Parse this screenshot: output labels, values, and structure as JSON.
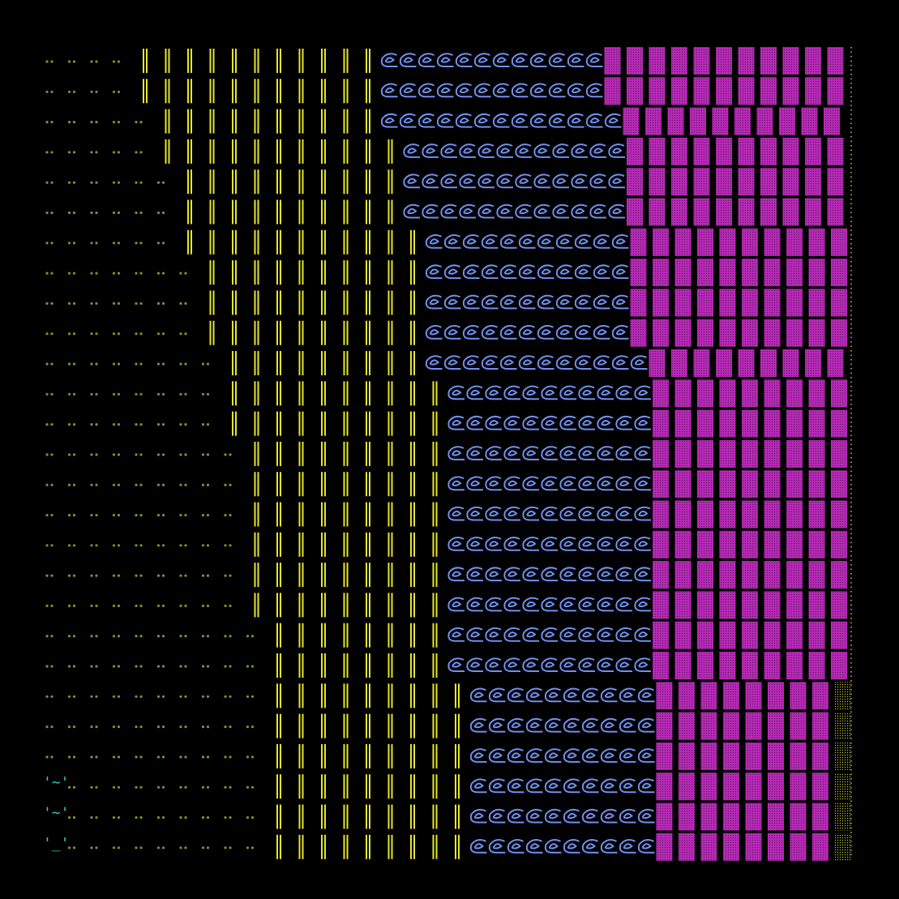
{
  "rows": [
    {
      "dots": 4,
      "bars": 11,
      "curls": 12,
      "boxes": 11
    },
    {
      "dots": 4,
      "bars": 11,
      "curls": 12,
      "boxes": 11
    },
    {
      "dots": 5,
      "bars": 10,
      "curls": 13,
      "boxes": 10
    },
    {
      "dots": 5,
      "bars": 11,
      "curls": 12,
      "boxes": 10
    },
    {
      "dots": 6,
      "bars": 10,
      "curls": 12,
      "boxes": 10
    },
    {
      "dots": 6,
      "bars": 10,
      "curls": 12,
      "boxes": 10
    },
    {
      "dots": 6,
      "bars": 11,
      "curls": 11,
      "boxes": 10
    },
    {
      "dots": 7,
      "bars": 10,
      "curls": 11,
      "boxes": 10
    },
    {
      "dots": 7,
      "bars": 10,
      "curls": 11,
      "boxes": 10
    },
    {
      "dots": 7,
      "bars": 10,
      "curls": 11,
      "boxes": 10
    },
    {
      "dots": 8,
      "bars": 9,
      "curls": 12,
      "boxes": 9
    },
    {
      "dots": 8,
      "bars": 10,
      "curls": 11,
      "boxes": 9
    },
    {
      "dots": 8,
      "bars": 10,
      "curls": 11,
      "boxes": 9
    },
    {
      "dots": 9,
      "bars": 9,
      "curls": 11,
      "boxes": 9
    },
    {
      "dots": 9,
      "bars": 9,
      "curls": 11,
      "boxes": 9
    },
    {
      "dots": 9,
      "bars": 9,
      "curls": 11,
      "boxes": 9
    },
    {
      "dots": 9,
      "bars": 9,
      "curls": 11,
      "boxes": 9
    },
    {
      "dots": 9,
      "bars": 9,
      "curls": 11,
      "boxes": 9
    },
    {
      "dots": 9,
      "bars": 9,
      "curls": 11,
      "boxes": 9
    },
    {
      "dots": 10,
      "bars": 8,
      "curls": 11,
      "boxes": 9
    },
    {
      "dots": 10,
      "bars": 8,
      "curls": 11,
      "boxes": 9
    },
    {
      "dots": 10,
      "bars": 9,
      "curls": 10,
      "boxes": 9,
      "last_dim": true
    },
    {
      "dots": 10,
      "bars": 9,
      "curls": 10,
      "boxes": 9,
      "last_dim": true
    },
    {
      "dots": 10,
      "bars": 9,
      "curls": 10,
      "boxes": 9,
      "last_dim": true
    },
    {
      "dots": 10,
      "bars": 9,
      "curls": 10,
      "boxes": 9,
      "last_dim": true,
      "label": "'~'"
    },
    {
      "dots": 10,
      "bars": 9,
      "curls": 10,
      "boxes": 9,
      "last_dim": true,
      "label": "'~'"
    },
    {
      "dots": 10,
      "bars": 9,
      "curls": 10,
      "boxes": 9,
      "last_dim": true,
      "label": "'_'"
    }
  ]
}
